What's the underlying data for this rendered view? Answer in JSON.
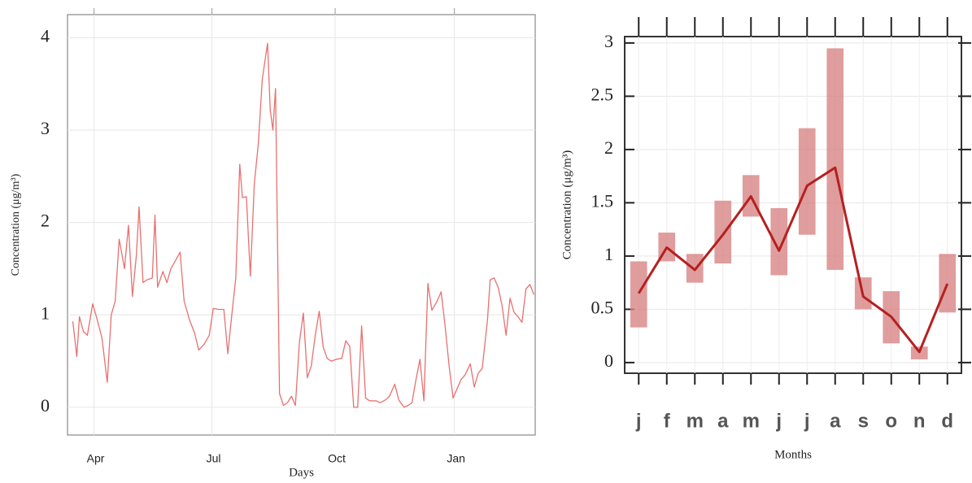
{
  "chart_data": [
    {
      "type": "line",
      "ylabel": "Concentration (μg/m³)",
      "xlabel": "Days",
      "x": [
        4,
        7,
        9,
        12,
        15,
        19,
        22,
        26,
        30,
        33,
        36,
        39,
        43,
        46,
        49,
        52,
        54,
        57,
        60,
        64,
        66,
        68,
        72,
        75,
        78,
        82,
        85,
        88,
        92,
        96,
        99,
        103,
        107,
        110,
        114,
        118,
        121,
        124,
        127,
        130,
        132,
        135,
        138,
        141,
        144,
        147,
        151,
        153,
        155,
        157,
        160,
        163,
        166,
        169,
        172,
        175,
        178,
        181,
        184,
        187,
        190,
        193,
        196,
        199,
        203,
        207,
        210,
        213,
        216,
        219,
        222,
        225,
        228,
        233,
        236,
        240,
        243,
        247,
        250,
        254,
        257,
        260,
        263,
        266,
        269,
        272,
        275,
        279,
        282,
        285,
        288,
        291,
        294,
        297,
        300,
        304,
        307,
        310,
        313,
        317,
        319,
        322,
        325,
        328,
        331,
        334,
        337,
        340,
        343,
        346,
        349,
        352
      ],
      "values": [
        0.93,
        0.55,
        0.98,
        0.82,
        0.78,
        1.12,
        0.97,
        0.75,
        0.27,
        1.0,
        1.15,
        1.82,
        1.5,
        1.97,
        1.2,
        1.65,
        2.17,
        1.35,
        1.38,
        1.4,
        2.08,
        1.3,
        1.47,
        1.35,
        1.5,
        1.6,
        1.68,
        1.15,
        0.95,
        0.8,
        0.62,
        0.68,
        0.78,
        1.07,
        1.06,
        1.06,
        0.58,
        1.0,
        1.4,
        2.63,
        2.27,
        2.28,
        1.42,
        2.42,
        2.85,
        3.55,
        3.94,
        3.22,
        3.0,
        3.45,
        0.15,
        0.02,
        0.05,
        0.12,
        0.02,
        0.7,
        1.02,
        0.32,
        0.45,
        0.78,
        1.04,
        0.65,
        0.53,
        0.5,
        0.52,
        0.53,
        0.72,
        0.66,
        0.0,
        0.0,
        0.88,
        0.1,
        0.07,
        0.07,
        0.05,
        0.08,
        0.12,
        0.25,
        0.08,
        0.0,
        0.02,
        0.05,
        0.3,
        0.52,
        0.07,
        1.34,
        1.05,
        1.15,
        1.25,
        0.88,
        0.45,
        0.1,
        0.2,
        0.3,
        0.35,
        0.47,
        0.22,
        0.37,
        0.42,
        0.95,
        1.38,
        1.4,
        1.3,
        1.1,
        0.78,
        1.18,
        1.03,
        0.98,
        0.92,
        1.28,
        1.33,
        1.22
      ],
      "color": "#e87070",
      "xlim": [
        0,
        353
      ],
      "xticks": [
        {
          "value": 20,
          "label": "Apr"
        },
        {
          "value": 109,
          "label": "Jul"
        },
        {
          "value": 202,
          "label": "Oct"
        },
        {
          "value": 292,
          "label": "Jan"
        }
      ],
      "ylim": [
        -0.3,
        4.25
      ],
      "yticks": [
        0,
        1,
        2,
        3,
        4
      ],
      "grid": true
    },
    {
      "type": "line",
      "ylabel": "Concentration (μg/m³)",
      "xlabel": "Months",
      "categories": [
        "j",
        "f",
        "m",
        "a",
        "m",
        "j",
        "j",
        "a",
        "s",
        "o",
        "n",
        "d"
      ],
      "values": [
        0.65,
        1.08,
        0.87,
        1.2,
        1.56,
        1.05,
        1.66,
        1.83,
        0.62,
        0.43,
        0.1,
        0.74
      ],
      "bar_low": [
        0.33,
        0.95,
        0.75,
        0.93,
        1.37,
        0.82,
        1.2,
        0.87,
        0.5,
        0.18,
        0.03,
        0.47
      ],
      "bar_high": [
        0.95,
        1.22,
        1.02,
        1.52,
        1.76,
        1.45,
        2.2,
        2.95,
        0.8,
        0.67,
        0.15,
        1.02
      ],
      "color": "#b52020",
      "bar_color": "#d88585",
      "ylim": [
        -0.1,
        3.06
      ],
      "yticks": [
        0,
        0.5,
        1,
        1.5,
        2,
        2.5,
        3
      ],
      "grid": true
    }
  ]
}
